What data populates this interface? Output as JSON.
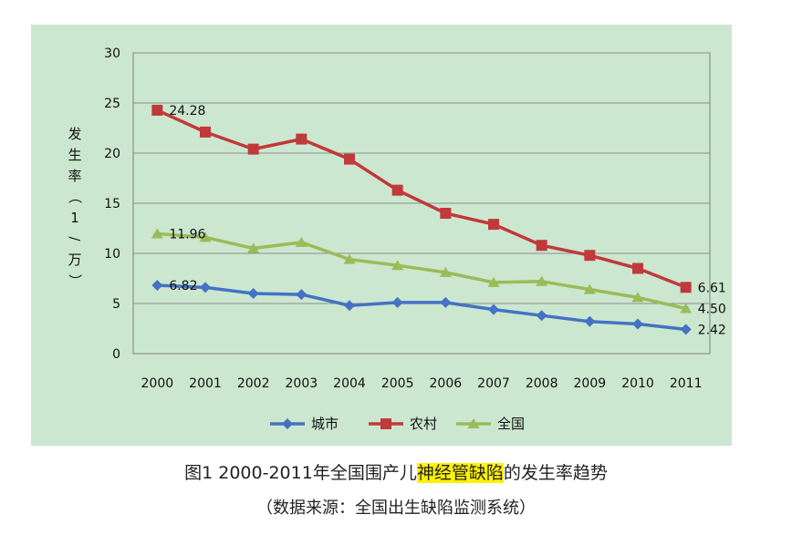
{
  "chart_data": {
    "type": "line",
    "categories": [
      "2000",
      "2001",
      "2002",
      "2003",
      "2004",
      "2005",
      "2006",
      "2007",
      "2008",
      "2009",
      "2010",
      "2011"
    ],
    "series": [
      {
        "name": "城市",
        "color": "#4472c4",
        "marker": "diamond",
        "values": [
          6.82,
          6.6,
          6.0,
          5.9,
          4.8,
          5.1,
          5.1,
          4.4,
          3.8,
          3.2,
          2.95,
          2.42
        ]
      },
      {
        "name": "农村",
        "color": "#c0393b",
        "marker": "square",
        "values": [
          24.28,
          22.1,
          20.4,
          21.4,
          19.4,
          16.3,
          14.0,
          12.9,
          10.8,
          9.8,
          8.5,
          6.61
        ]
      },
      {
        "name": "全国",
        "color": "#9bbb59",
        "marker": "triangle",
        "values": [
          11.96,
          11.6,
          10.5,
          11.1,
          9.4,
          8.8,
          8.1,
          7.1,
          7.2,
          6.4,
          5.6,
          4.5
        ]
      }
    ],
    "data_labels": [
      {
        "series": 1,
        "index": 0,
        "text": "24.28"
      },
      {
        "series": 2,
        "index": 0,
        "text": "11.96"
      },
      {
        "series": 0,
        "index": 0,
        "text": "6.82"
      },
      {
        "series": 1,
        "index": 11,
        "text": "6.61"
      },
      {
        "series": 2,
        "index": 11,
        "text": "4.50"
      },
      {
        "series": 0,
        "index": 11,
        "text": "2.42"
      }
    ],
    "ylabel": "发生率（1/万）",
    "ylim": [
      0,
      30
    ],
    "yticks": [
      0,
      5,
      10,
      15,
      20,
      25,
      30
    ],
    "grid": true,
    "legend_position": "bottom"
  },
  "caption": {
    "prefix": "图1  2000-2011年全国围产儿",
    "highlight": "神经管缺陷",
    "suffix": "的发生率趋势",
    "highlight_color": "#fff200"
  },
  "source_note": "（数据来源：全国出生缺陷监测系统）"
}
